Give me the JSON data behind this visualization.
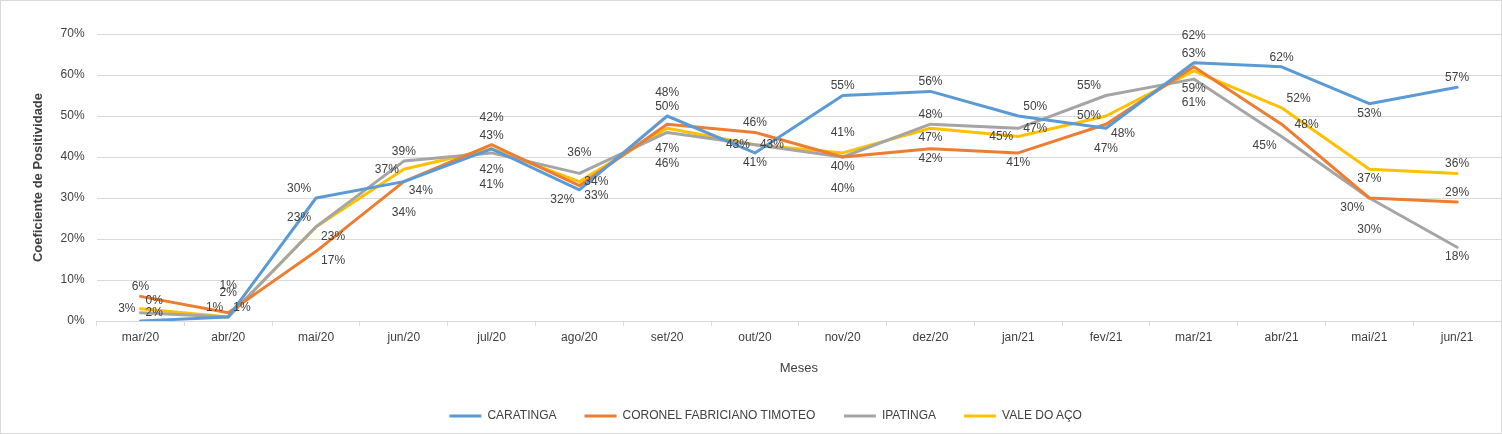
{
  "chart_data": {
    "type": "line",
    "xlabel": "Meses",
    "ylabel": "Coeficiente de Positividade",
    "categories": [
      "mar/20",
      "abr/20",
      "mai/20",
      "jun/20",
      "jul/20",
      "ago/20",
      "set/20",
      "out/20",
      "nov/20",
      "dez/20",
      "jan/21",
      "fev/21",
      "mar/21",
      "abr/21",
      "mai/21",
      "jun/21"
    ],
    "series": [
      {
        "name": "CARATINGA",
        "color": "#5b9bd5",
        "values": [
          0,
          1,
          30,
          34,
          42,
          32,
          50,
          41,
          55,
          56,
          50,
          47,
          63,
          62,
          53,
          57
        ],
        "value_labels": [
          "0%",
          "1%",
          "30%",
          "34%",
          "42%",
          "32%",
          "50%",
          "41%",
          "55%",
          "56%",
          "50%",
          "47%",
          "63%",
          "62%",
          "53%",
          "57%"
        ]
      },
      {
        "name": "CORONEL FABRICIANO TIMOTEO",
        "color": "#ed7d31",
        "values": [
          6,
          2,
          17,
          34,
          43,
          33,
          48,
          46,
          40,
          42,
          41,
          48,
          62,
          48,
          30,
          29
        ],
        "value_labels": [
          "6%",
          "2%",
          "17%",
          "34%",
          "43%",
          "33%",
          "48%",
          "46%",
          "40%",
          "42%",
          "41%",
          "48%",
          "62%",
          "48%",
          "30%",
          "29%"
        ]
      },
      {
        "name": "IPATINGA",
        "color": "#a5a5a5",
        "values": [
          2,
          1,
          23,
          39,
          41,
          36,
          46,
          43,
          40,
          48,
          47,
          55,
          59,
          45,
          30,
          18
        ],
        "value_labels": [
          "2%",
          "1%",
          "23%",
          "39%",
          "41%",
          "36%",
          "46%",
          "43%",
          "40%",
          "48%",
          "47%",
          "55%",
          "59%",
          "45%",
          "30%",
          "18%"
        ]
      },
      {
        "name": "VALE DO AÇO",
        "color": "#ffc000",
        "values": [
          3,
          1,
          23,
          37,
          42,
          34,
          47,
          43,
          41,
          47,
          45,
          50,
          61,
          52,
          37,
          36
        ],
        "value_labels": [
          "3%",
          "1%",
          "23%",
          "37%",
          "42%",
          "34%",
          "47%",
          "43%",
          "41%",
          "47%",
          "45%",
          "50%",
          "61%",
          "52%",
          "37%",
          "36%"
        ]
      }
    ],
    "ylim": [
      0,
      70
    ],
    "yticks": [
      {
        "value": 0,
        "label": "0%"
      },
      {
        "value": 10,
        "label": "10%"
      },
      {
        "value": 20,
        "label": "20%"
      },
      {
        "value": 30,
        "label": "30%"
      },
      {
        "value": 40,
        "label": "40%"
      },
      {
        "value": 50,
        "label": "50%"
      },
      {
        "value": 60,
        "label": "60%"
      },
      {
        "value": 70,
        "label": "70%"
      }
    ],
    "grid": "y",
    "legend": "bottom"
  }
}
